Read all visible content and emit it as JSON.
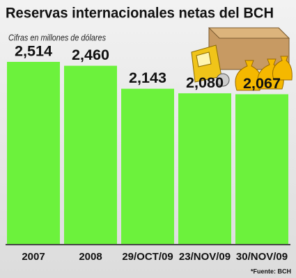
{
  "chart_data": {
    "type": "bar",
    "title": "Reservas internacionales netas del BCH",
    "subtitle": "Cifras en millones de dólares",
    "source": "*Fuente: BCH",
    "categories": [
      "2007",
      "2008",
      "29/OCT/09",
      "23/NOV/09",
      "30/NOV/09"
    ],
    "values": [
      2514,
      2460,
      2143,
      2080,
      2067
    ],
    "value_labels": [
      "2,514",
      "2,460",
      "2,143",
      "2,080",
      "2,067"
    ],
    "color": "#6cf23c"
  }
}
